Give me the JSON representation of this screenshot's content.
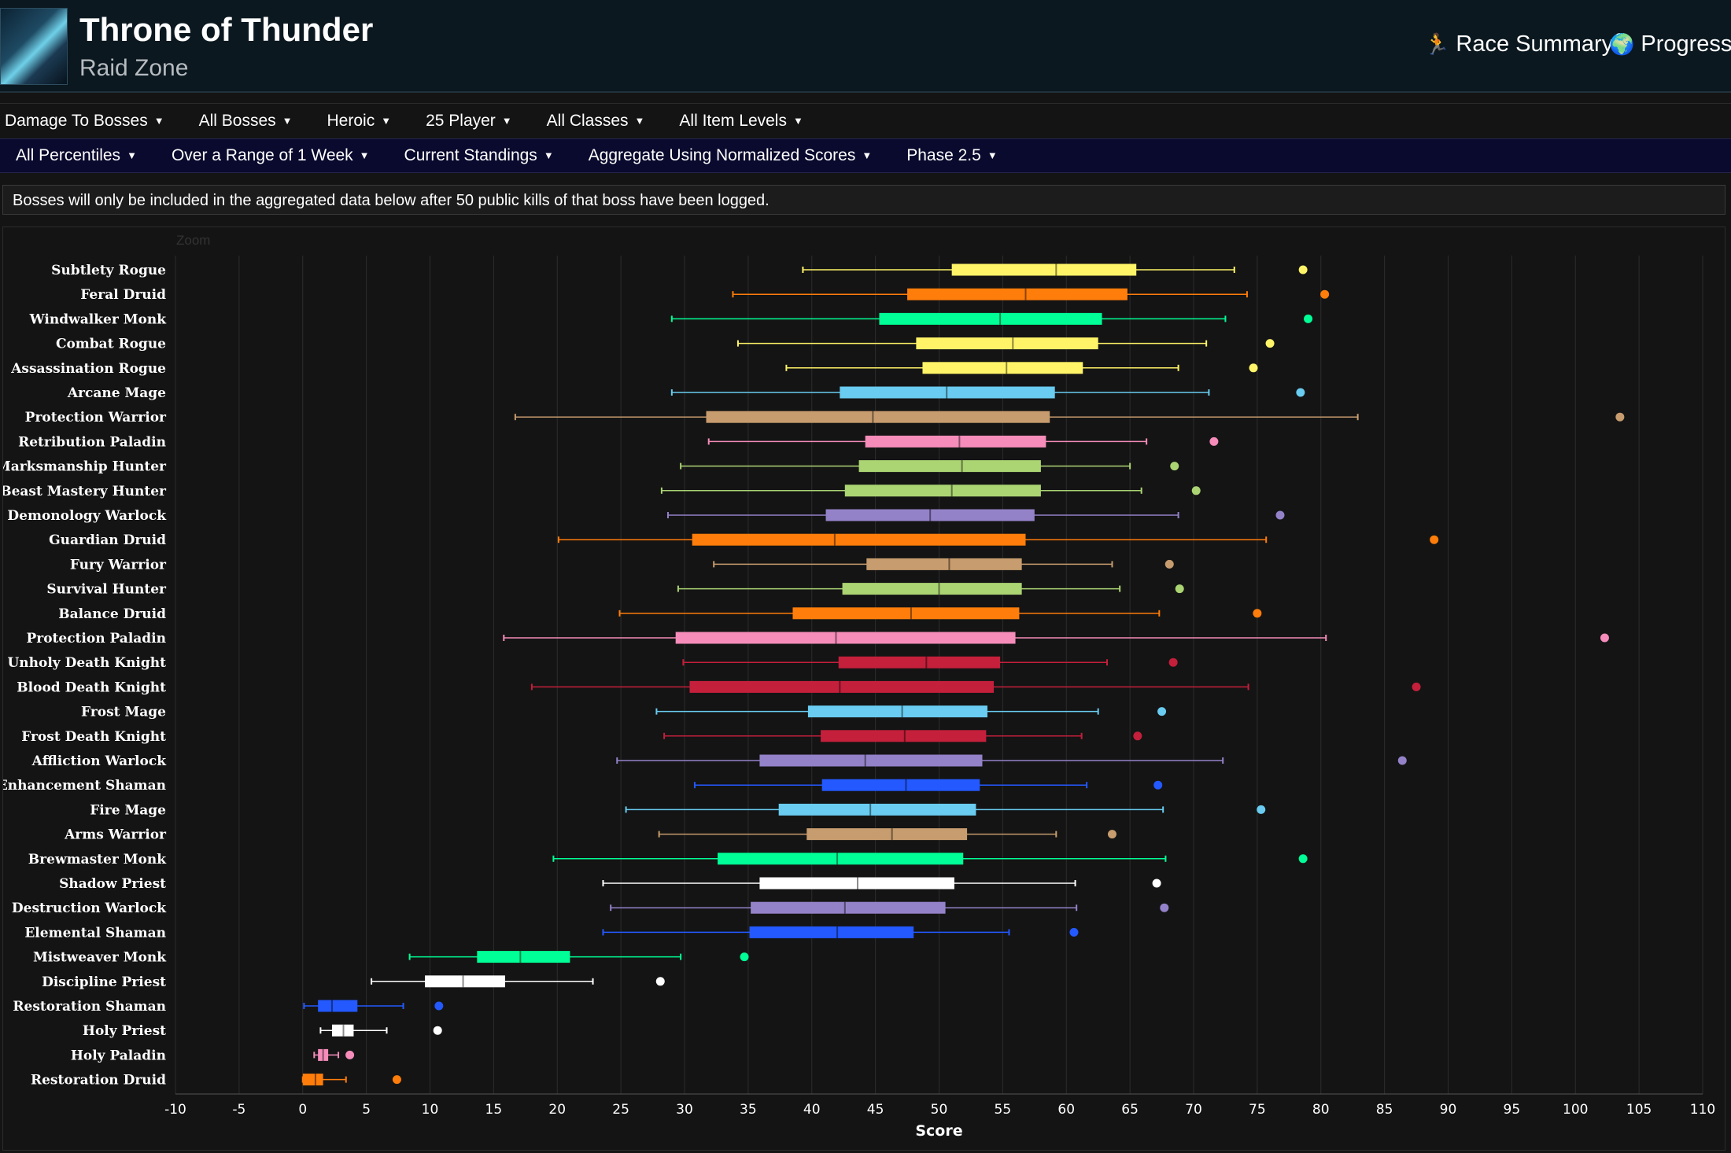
{
  "header": {
    "title": "Throne of Thunder",
    "subtitle": "Raid Zone",
    "race_summary": "Race Summary",
    "progress": "Progress"
  },
  "filters_row1": [
    "Damage To Bosses",
    "All Bosses",
    "Heroic",
    "25 Player",
    "All Classes",
    "All Item Levels"
  ],
  "filters_row2": [
    "All Percentiles",
    "Over a Range of 1 Week",
    "Current Standings",
    "Aggregate Using Normalized Scores",
    "Phase 2.5"
  ],
  "notice": "Bosses will only be included in the aggregated data below after 50 public kills of that boss have been logged.",
  "chart": {
    "zoom_label": "Zoom"
  },
  "chart_data": {
    "type": "boxplot",
    "xlabel": "Score",
    "xlim": [
      -10,
      110
    ],
    "xticks": [
      -10,
      -5,
      0,
      5,
      10,
      15,
      20,
      25,
      30,
      35,
      40,
      45,
      50,
      55,
      60,
      65,
      70,
      75,
      80,
      85,
      90,
      95,
      100,
      105,
      110
    ],
    "grid": true,
    "series": [
      {
        "name": "Subtlety Rogue",
        "color": "#fff468",
        "min": 39.3,
        "q1": 51.0,
        "median": 59.2,
        "q3": 65.5,
        "max": 73.2,
        "outlier": 78.6
      },
      {
        "name": "Feral Druid",
        "color": "#ff7d0a",
        "min": 33.8,
        "q1": 47.5,
        "median": 56.8,
        "q3": 64.8,
        "max": 74.2,
        "outlier": 80.3
      },
      {
        "name": "Windwalker Monk",
        "color": "#00ff96",
        "min": 29.0,
        "q1": 45.3,
        "median": 54.8,
        "q3": 62.8,
        "max": 72.5,
        "outlier": 79.0
      },
      {
        "name": "Combat Rogue",
        "color": "#fff468",
        "min": 34.2,
        "q1": 48.2,
        "median": 55.8,
        "q3": 62.5,
        "max": 71.0,
        "outlier": 76.0
      },
      {
        "name": "Assassination Rogue",
        "color": "#fff468",
        "min": 38.0,
        "q1": 48.7,
        "median": 55.3,
        "q3": 61.3,
        "max": 68.8,
        "outlier": 74.7
      },
      {
        "name": "Arcane Mage",
        "color": "#69ccf0",
        "min": 29.0,
        "q1": 42.2,
        "median": 50.6,
        "q3": 59.1,
        "max": 71.2,
        "outlier": 78.4
      },
      {
        "name": "Protection Warrior",
        "color": "#c79c6e",
        "min": 16.7,
        "q1": 31.7,
        "median": 44.8,
        "q3": 58.7,
        "max": 82.9,
        "outlier": 103.5
      },
      {
        "name": "Retribution Paladin",
        "color": "#f58cba",
        "min": 31.9,
        "q1": 44.2,
        "median": 51.6,
        "q3": 58.4,
        "max": 66.3,
        "outlier": 71.6
      },
      {
        "name": "Marksmanship Hunter",
        "color": "#abd473",
        "min": 29.7,
        "q1": 43.7,
        "median": 51.8,
        "q3": 58.0,
        "max": 65.0,
        "outlier": 68.5
      },
      {
        "name": "Beast Mastery Hunter",
        "color": "#abd473",
        "min": 28.2,
        "q1": 42.6,
        "median": 51.0,
        "q3": 58.0,
        "max": 65.9,
        "outlier": 70.2
      },
      {
        "name": "Demonology Warlock",
        "color": "#9482c9",
        "min": 28.7,
        "q1": 41.1,
        "median": 49.3,
        "q3": 57.5,
        "max": 68.8,
        "outlier": 76.8
      },
      {
        "name": "Guardian Druid",
        "color": "#ff7d0a",
        "min": 20.1,
        "q1": 30.6,
        "median": 41.8,
        "q3": 56.8,
        "max": 75.7,
        "outlier": 88.9
      },
      {
        "name": "Fury Warrior",
        "color": "#c79c6e",
        "min": 32.3,
        "q1": 44.3,
        "median": 50.8,
        "q3": 56.5,
        "max": 63.6,
        "outlier": 68.1
      },
      {
        "name": "Survival Hunter",
        "color": "#abd473",
        "min": 29.5,
        "q1": 42.4,
        "median": 50.0,
        "q3": 56.5,
        "max": 64.2,
        "outlier": 68.9
      },
      {
        "name": "Balance Druid",
        "color": "#ff7d0a",
        "min": 24.9,
        "q1": 38.5,
        "median": 47.8,
        "q3": 56.3,
        "max": 67.3,
        "outlier": 75.0
      },
      {
        "name": "Protection Paladin",
        "color": "#f58cba",
        "min": 15.8,
        "q1": 29.3,
        "median": 41.9,
        "q3": 56.0,
        "max": 80.4,
        "outlier": 102.3
      },
      {
        "name": "Unholy Death Knight",
        "color": "#c41f3b",
        "min": 29.9,
        "q1": 42.1,
        "median": 49.0,
        "q3": 54.8,
        "max": 63.2,
        "outlier": 68.4
      },
      {
        "name": "Blood Death Knight",
        "color": "#c41f3b",
        "min": 18.0,
        "q1": 30.4,
        "median": 42.2,
        "q3": 54.3,
        "max": 74.3,
        "outlier": 87.5
      },
      {
        "name": "Frost Mage",
        "color": "#69ccf0",
        "min": 27.8,
        "q1": 39.7,
        "median": 47.1,
        "q3": 53.8,
        "max": 62.5,
        "outlier": 67.5
      },
      {
        "name": "Frost Death Knight",
        "color": "#c41f3b",
        "min": 28.4,
        "q1": 40.7,
        "median": 47.3,
        "q3": 53.7,
        "max": 61.2,
        "outlier": 65.6
      },
      {
        "name": "Affliction Warlock",
        "color": "#9482c9",
        "min": 24.7,
        "q1": 35.9,
        "median": 44.2,
        "q3": 53.4,
        "max": 72.3,
        "outlier": 86.4
      },
      {
        "name": "Enhancement Shaman",
        "color": "#2359ff",
        "min": 30.8,
        "q1": 40.8,
        "median": 47.4,
        "q3": 53.2,
        "max": 61.6,
        "outlier": 67.2
      },
      {
        "name": "Fire Mage",
        "color": "#69ccf0",
        "min": 25.4,
        "q1": 37.4,
        "median": 44.6,
        "q3": 52.9,
        "max": 67.6,
        "outlier": 75.3
      },
      {
        "name": "Arms Warrior",
        "color": "#c79c6e",
        "min": 28.0,
        "q1": 39.6,
        "median": 46.3,
        "q3": 52.2,
        "max": 59.2,
        "outlier": 63.6
      },
      {
        "name": "Brewmaster Monk",
        "color": "#00ff96",
        "min": 19.7,
        "q1": 32.6,
        "median": 42.0,
        "q3": 51.9,
        "max": 67.8,
        "outlier": 78.6
      },
      {
        "name": "Shadow Priest",
        "color": "#ffffff",
        "min": 23.6,
        "q1": 35.9,
        "median": 43.6,
        "q3": 51.2,
        "max": 60.7,
        "outlier": 67.1
      },
      {
        "name": "Destruction Warlock",
        "color": "#9482c9",
        "min": 24.2,
        "q1": 35.2,
        "median": 42.6,
        "q3": 50.5,
        "max": 60.8,
        "outlier": 67.7
      },
      {
        "name": "Elemental Shaman",
        "color": "#2359ff",
        "min": 23.6,
        "q1": 35.1,
        "median": 42.0,
        "q3": 48.0,
        "max": 55.5,
        "outlier": 60.6
      },
      {
        "name": "Mistweaver Monk",
        "color": "#00ff96",
        "min": 8.4,
        "q1": 13.7,
        "median": 17.1,
        "q3": 21.0,
        "max": 29.7,
        "outlier": 34.7
      },
      {
        "name": "Discipline Priest",
        "color": "#ffffff",
        "min": 5.4,
        "q1": 9.6,
        "median": 12.6,
        "q3": 15.9,
        "max": 22.8,
        "outlier": 28.1
      },
      {
        "name": "Restoration Shaman",
        "color": "#2359ff",
        "min": 0.1,
        "q1": 1.2,
        "median": 2.3,
        "q3": 4.3,
        "max": 7.9,
        "outlier": 10.7
      },
      {
        "name": "Holy Priest",
        "color": "#ffffff",
        "min": 1.4,
        "q1": 2.3,
        "median": 3.2,
        "q3": 4.0,
        "max": 6.6,
        "outlier": 10.6
      },
      {
        "name": "Holy Paladin",
        "color": "#f58cba",
        "min": 0.9,
        "q1": 1.2,
        "median": 1.6,
        "q3": 2.0,
        "max": 2.8,
        "outlier": 3.7
      },
      {
        "name": "Restoration Druid",
        "color": "#ff7d0a",
        "min": 0.0,
        "q1": 0.0,
        "median": 1.0,
        "q3": 1.6,
        "max": 3.4,
        "outlier": 7.4
      }
    ]
  }
}
